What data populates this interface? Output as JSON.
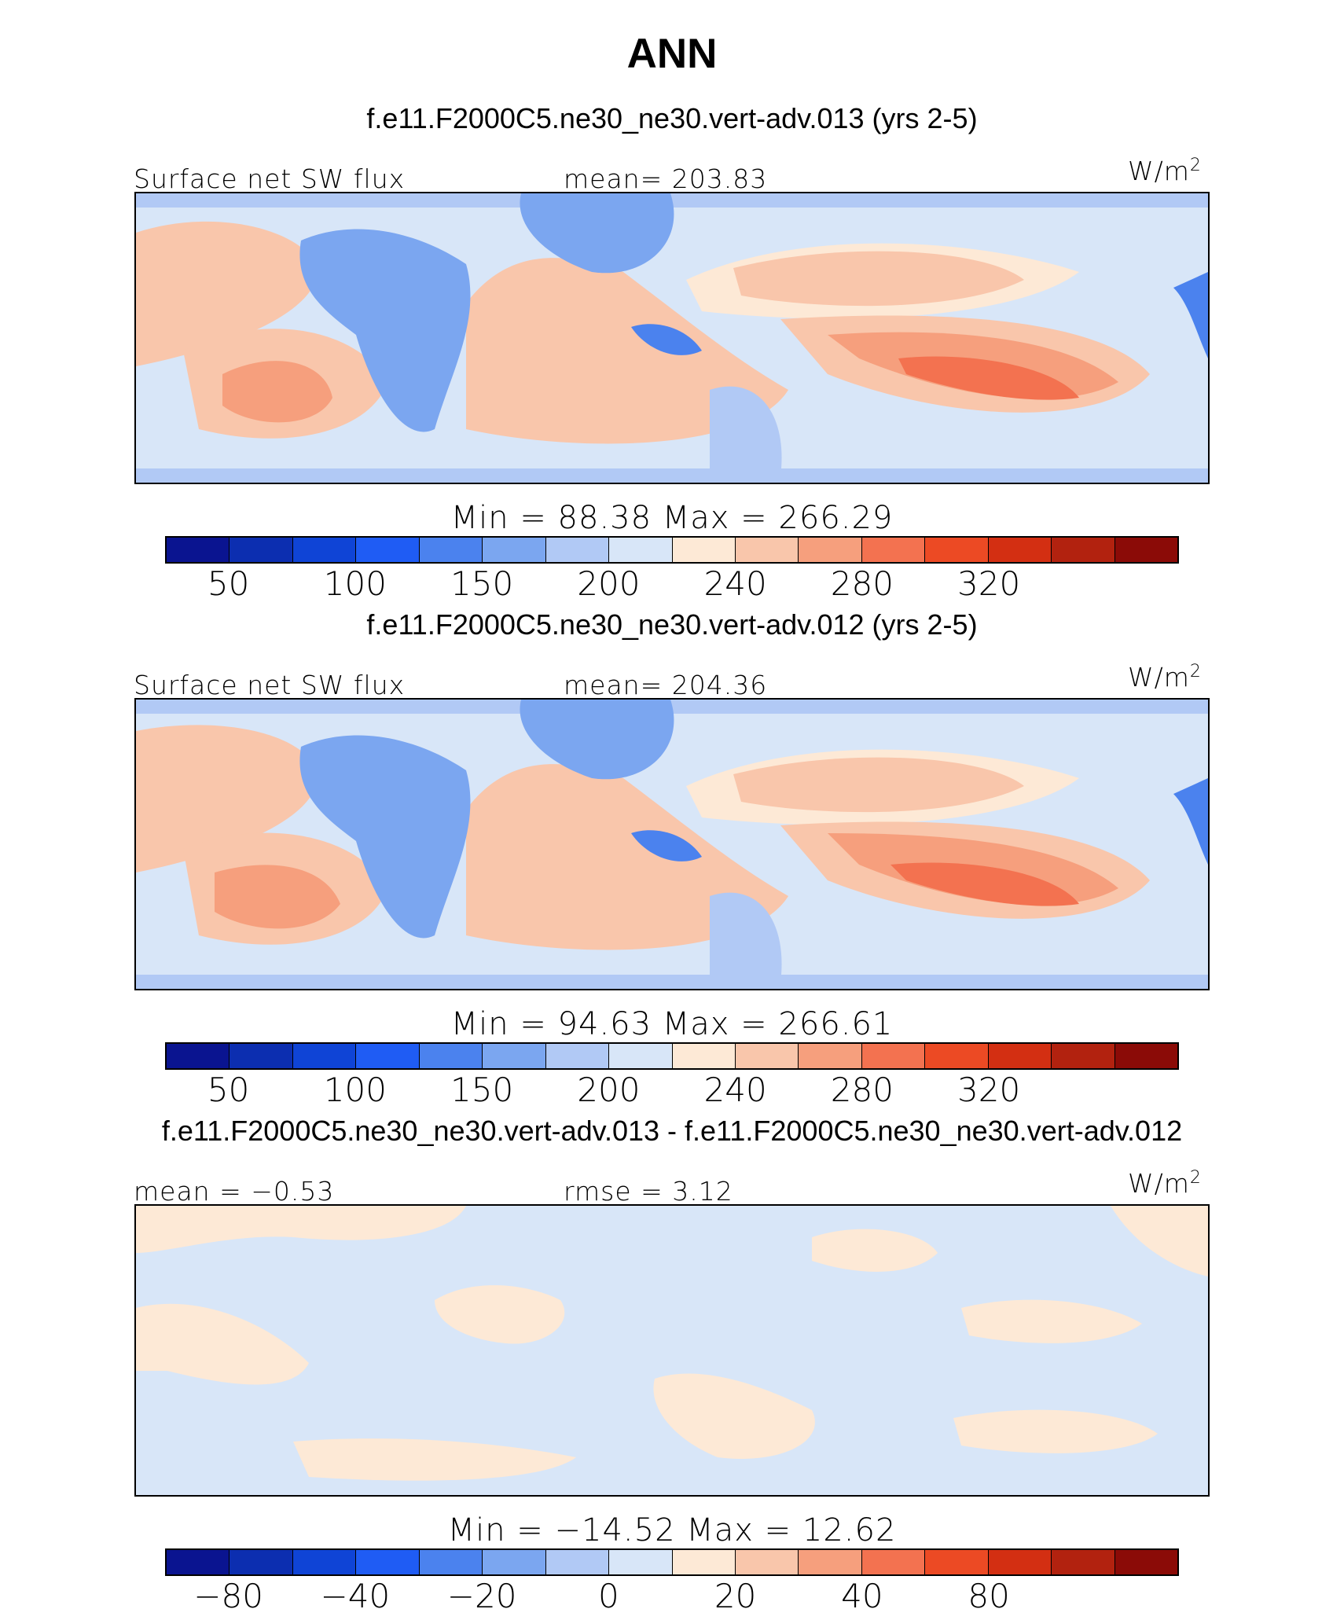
{
  "title": "ANN",
  "panels": [
    {
      "title": "f.e11.F2000C5.ne30_ne30.vert-adv.013 (yrs 2-5)",
      "left_label": "Surface net SW flux",
      "center_label": "mean= 203.83",
      "units": "W/m²",
      "minmax": "Min =   88.38  Max =  266.29"
    },
    {
      "title": "f.e11.F2000C5.ne30_ne30.vert-adv.012 (yrs 2-5)",
      "left_label": "Surface net SW flux",
      "center_label": "mean= 204.36",
      "units": "W/m²",
      "minmax": "Min =   94.63  Max =  266.61"
    },
    {
      "title": "f.e11.F2000C5.ne30_ne30.vert-adv.013 - f.e11.F2000C5.ne30_ne30.vert-adv.012",
      "left_label": "mean =   −0.53",
      "center_label": "rmse =     3.12",
      "units": "W/m²",
      "minmax": "Min = −14.52  Max =   12.62"
    }
  ],
  "colorbar": {
    "colors": [
      "#0a1490",
      "#0c2eb0",
      "#0f44d6",
      "#1f5cf4",
      "#4b82ee",
      "#7ba6f0",
      "#b1c9f5",
      "#d8e6f8",
      "#fde9d6",
      "#f9c6ab",
      "#f69f7d",
      "#f37250",
      "#ec4a24",
      "#d32f12",
      "#b2220f",
      "#8b0b07"
    ]
  },
  "colorbar_ticks": [
    [
      "50",
      "100",
      "150",
      "200",
      "240",
      "280",
      "320"
    ],
    [
      "50",
      "100",
      "150",
      "200",
      "240",
      "280",
      "320"
    ],
    [
      "−80",
      "−40",
      "−20",
      "0",
      "20",
      "40",
      "80"
    ]
  ],
  "chart_data": [
    {
      "type": "heatmap",
      "title": "f.e11.F2000C5.ne30_ne30.vert-adv.013 (yrs 2-5)",
      "variable": "Surface net SW flux",
      "units": "W/m²",
      "mean": 203.83,
      "min": 88.38,
      "max": 266.29,
      "contour_levels": [
        25,
        50,
        75,
        100,
        125,
        150,
        175,
        200,
        220,
        240,
        260,
        280,
        300,
        320,
        340
      ]
    },
    {
      "type": "heatmap",
      "title": "f.e11.F2000C5.ne30_ne30.vert-adv.012 (yrs 2-5)",
      "variable": "Surface net SW flux",
      "units": "W/m²",
      "mean": 204.36,
      "min": 94.63,
      "max": 266.61,
      "contour_levels": [
        25,
        50,
        75,
        100,
        125,
        150,
        175,
        200,
        220,
        240,
        260,
        280,
        300,
        320,
        340
      ]
    },
    {
      "type": "heatmap",
      "title": "f.e11.F2000C5.ne30_ne30.vert-adv.013 - f.e11.F2000C5.ne30_ne30.vert-adv.012",
      "units": "W/m²",
      "mean": -0.53,
      "rmse": 3.12,
      "min": -14.52,
      "max": 12.62,
      "contour_levels": [
        -100,
        -80,
        -60,
        -40,
        -30,
        -20,
        -10,
        0,
        10,
        20,
        30,
        40,
        60,
        80,
        100
      ]
    }
  ]
}
